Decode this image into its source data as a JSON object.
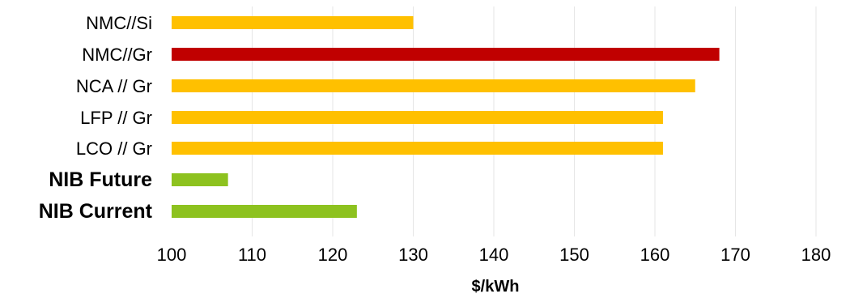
{
  "chart_data": {
    "type": "bar",
    "orientation": "horizontal",
    "title": "",
    "xlabel": "$/kWh",
    "ylabel": "",
    "xlim": [
      100,
      180
    ],
    "x_ticks": [
      100,
      110,
      120,
      130,
      140,
      150,
      160,
      170,
      180
    ],
    "grid": "vertical",
    "legend": "none",
    "categories": [
      {
        "label": "NMC//Si",
        "value": 130,
        "color": "#FFC000",
        "bold": false
      },
      {
        "label": "NMC//Gr",
        "value": 168,
        "color": "#C00000",
        "bold": false
      },
      {
        "label": "NCA // Gr",
        "value": 165,
        "color": "#FFC000",
        "bold": false
      },
      {
        "label": "LFP // Gr",
        "value": 161,
        "color": "#FFC000",
        "bold": false
      },
      {
        "label": "LCO // Gr",
        "value": 161,
        "color": "#FFC000",
        "bold": false
      },
      {
        "label": "NIB Future",
        "value": 107,
        "color": "#8DC21F",
        "bold": true
      },
      {
        "label": "NIB Current",
        "value": 123,
        "color": "#8DC21F",
        "bold": true
      }
    ]
  }
}
